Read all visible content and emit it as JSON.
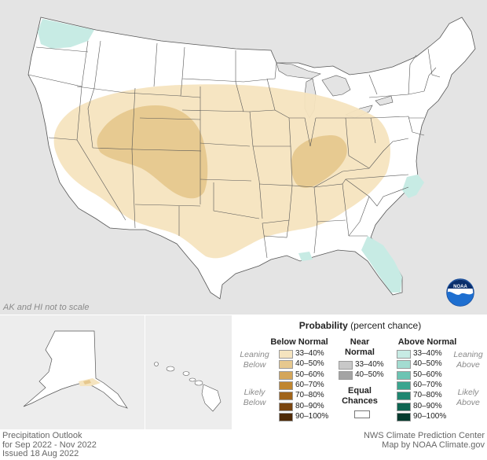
{
  "map": {
    "note": "AK and HI not to scale",
    "logo_text": "NOAA",
    "colors": {
      "land": "#ffffff",
      "background": "#e4e4e4",
      "below_33_40": "#f5e4bf",
      "below_40_50": "#e6c88e",
      "above_33_40": "#c7ebe4"
    }
  },
  "legend": {
    "title_bold": "Probability",
    "title_rest": " (percent chance)",
    "below_header": "Below Normal",
    "near_header": "Near Normal",
    "above_header": "Above Normal",
    "leaning_below": "Leaning Below",
    "likely_below": "Likely Below",
    "leaning_above": "Leaning Above",
    "likely_above": "Likely Above",
    "equal_chances": "Equal Chances",
    "below_bins": [
      {
        "label": "33–40%",
        "color": "#f5e4bf"
      },
      {
        "label": "40–50%",
        "color": "#e6c88e"
      },
      {
        "label": "50–60%",
        "color": "#d4a65a"
      },
      {
        "label": "60–70%",
        "color": "#c0862f"
      },
      {
        "label": "70–80%",
        "color": "#a0641a"
      },
      {
        "label": "80–90%",
        "color": "#7a4510"
      },
      {
        "label": "90–100%",
        "color": "#4f2a06"
      }
    ],
    "near_bins": [
      {
        "label": "33–40%",
        "color": "#c8c8c8"
      },
      {
        "label": "40–50%",
        "color": "#a4a4a4"
      }
    ],
    "above_bins": [
      {
        "label": "33–40%",
        "color": "#c7ebe4"
      },
      {
        "label": "40–50%",
        "color": "#a3dcd1"
      },
      {
        "label": "50–60%",
        "color": "#6cc4b3"
      },
      {
        "label": "60–70%",
        "color": "#3aa58f"
      },
      {
        "label": "70–80%",
        "color": "#1f8670"
      },
      {
        "label": "80–90%",
        "color": "#0f6552"
      },
      {
        "label": "90–100%",
        "color": "#063b2f"
      }
    ]
  },
  "footer": {
    "title": "Precipitation Outlook",
    "period": "for Sep 2022 - Nov 2022",
    "issued": "Issued 18 Aug 2022",
    "source": "NWS Climate Prediction Center",
    "credit": "Map by NOAA Climate.gov"
  }
}
